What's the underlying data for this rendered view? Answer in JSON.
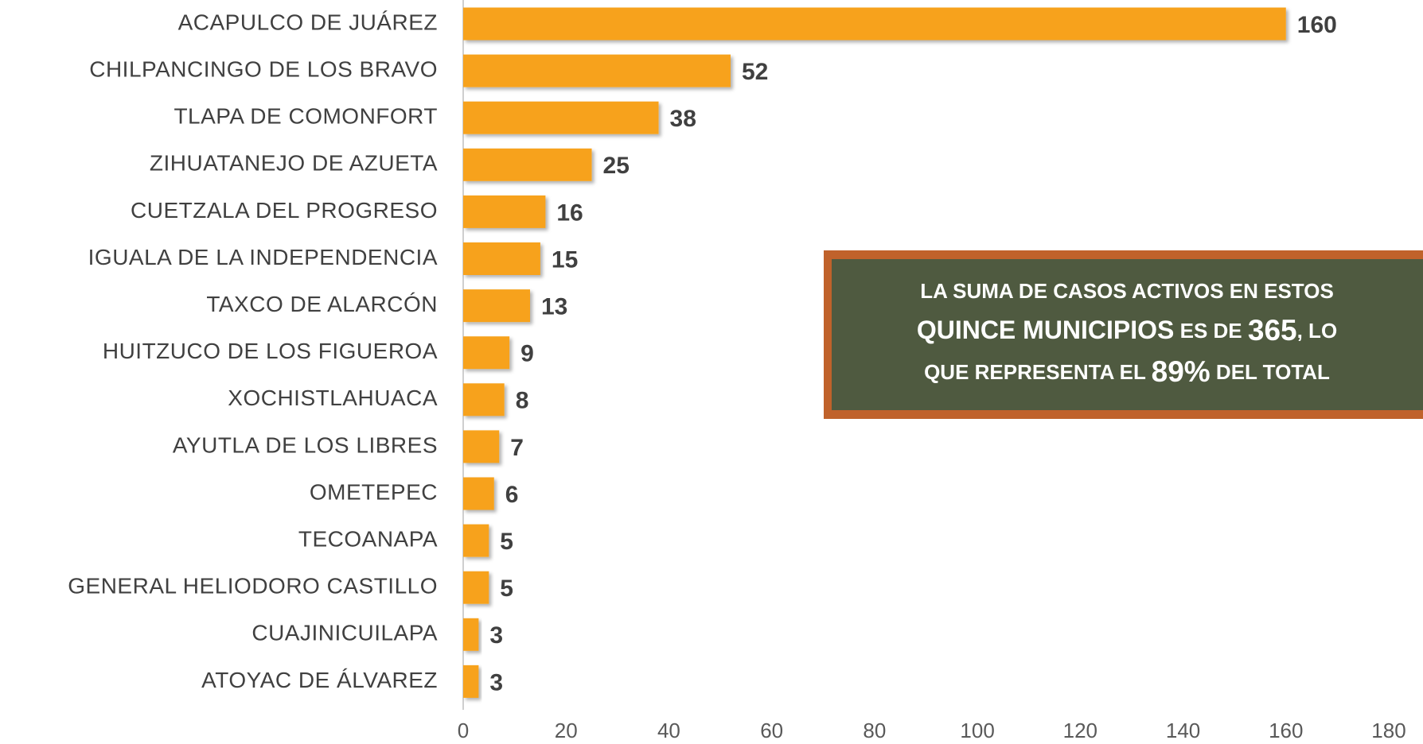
{
  "chart_data": {
    "type": "bar",
    "orientation": "horizontal",
    "categories": [
      "ACAPULCO DE JUÁREZ",
      "CHILPANCINGO DE LOS BRAVO",
      "TLAPA DE COMONFORT",
      "ZIHUATANEJO DE AZUETA",
      "CUETZALA DEL PROGRESO",
      "IGUALA DE LA INDEPENDENCIA",
      "TAXCO DE ALARCÓN",
      "HUITZUCO DE LOS FIGUEROA",
      "XOCHISTLAHUACA",
      "AYUTLA DE LOS LIBRES",
      "OMETEPEC",
      "TECOANAPA",
      "GENERAL HELIODORO CASTILLO",
      "CUAJINICUILAPA",
      "ATOYAC DE ÁLVAREZ"
    ],
    "values": [
      160,
      52,
      38,
      25,
      16,
      15,
      13,
      9,
      8,
      7,
      6,
      5,
      5,
      3,
      3
    ],
    "color": "#f7a21b",
    "xlim": [
      0,
      180
    ],
    "xticks": [
      0,
      20,
      40,
      60,
      80,
      100,
      120,
      140,
      160,
      180
    ],
    "grid": false,
    "annotation": {
      "lines": [
        [
          "LA SUMA DE CASOS ACTIVOS EN ESTOS"
        ],
        [
          "QUINCE MUNICIPIOS",
          " ES DE ",
          "365",
          ", LO"
        ],
        [
          "QUE REPRESENTA EL ",
          "89%",
          " DEL TOTAL"
        ]
      ]
    }
  }
}
